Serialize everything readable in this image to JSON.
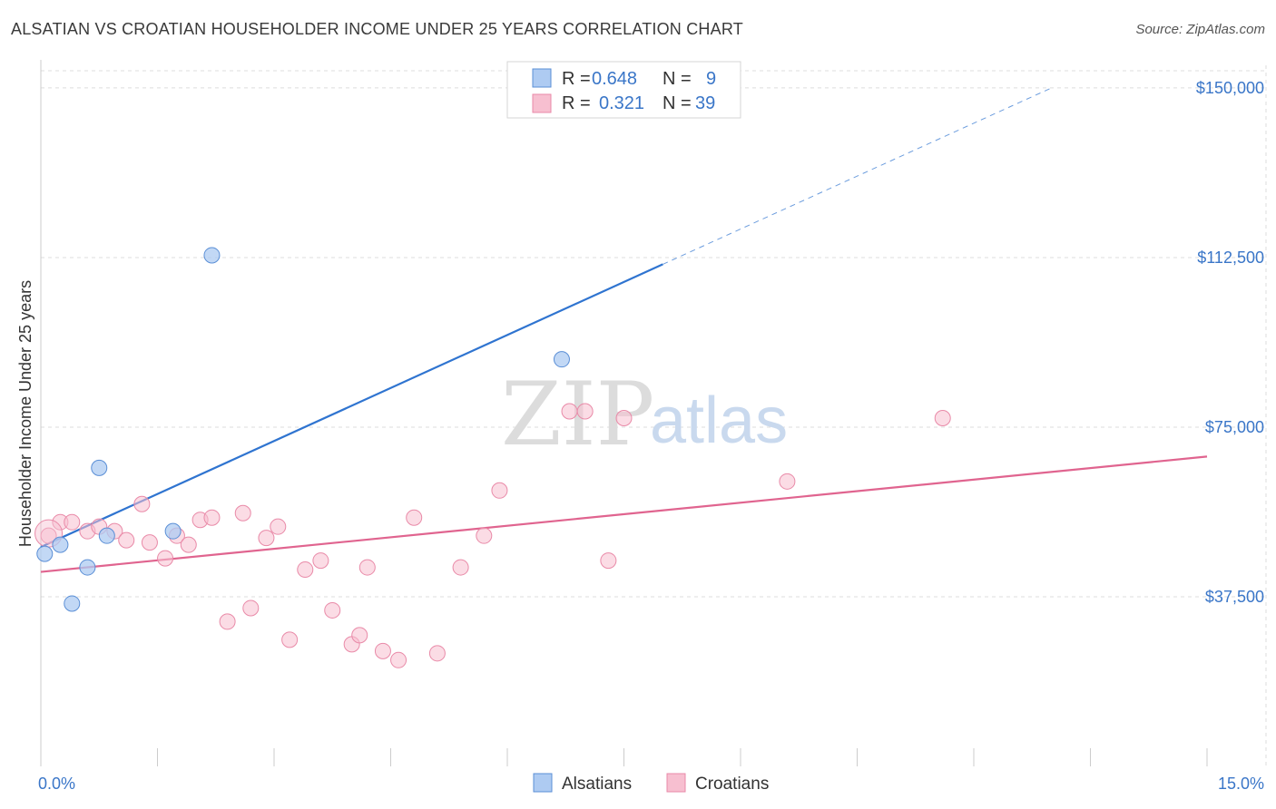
{
  "header": {
    "title": "ALSATIAN VS CROATIAN HOUSEHOLDER INCOME UNDER 25 YEARS CORRELATION CHART",
    "source": "Source: ZipAtlas.com"
  },
  "watermark": {
    "zip": "ZIP",
    "atlas": "atlas"
  },
  "legend": {
    "rows": [
      {
        "r_label": "R =",
        "r_value": "0.648",
        "n_label": "N =",
        "n_value": "9"
      },
      {
        "r_label": "R =",
        "r_value": "0.321",
        "n_label": "N =",
        "n_value": "39"
      }
    ]
  },
  "bottom_legend": {
    "series1": "Alsatians",
    "series2": "Croatians"
  },
  "colors": {
    "alsatian_fill": "#aecbf2",
    "alsatian_stroke": "#5b8fd6",
    "alsatian_line": "#2f74d0",
    "croatian_fill": "#f7bfd0",
    "croatian_stroke": "#e98aa8",
    "croatian_line": "#e0648f",
    "grid": "#dddddd",
    "tick_text": "#3a76c8"
  },
  "chart_data": {
    "type": "scatter",
    "title": "ALSATIAN VS CROATIAN HOUSEHOLDER INCOME UNDER 25 YEARS CORRELATION CHART",
    "xlabel": "",
    "ylabel": "Householder Income Under 25 years",
    "xlim": [
      0,
      15
    ],
    "ylim": [
      0,
      155000
    ],
    "x_tick_labels": [
      "0.0%",
      "15.0%"
    ],
    "y_ticks": [
      37500,
      75000,
      112500,
      150000
    ],
    "y_tick_labels": [
      "$37,500",
      "$75,000",
      "$112,500",
      "$150,000"
    ],
    "grid": true,
    "legend_position": "top-center",
    "series": [
      {
        "name": "Alsatians",
        "R": 0.648,
        "N": 9,
        "points": [
          [
            0.05,
            47000
          ],
          [
            0.25,
            49000
          ],
          [
            0.6,
            44000
          ],
          [
            0.4,
            36000
          ],
          [
            0.75,
            66000
          ],
          [
            0.85,
            51000
          ],
          [
            1.7,
            52000
          ],
          [
            2.2,
            113000
          ],
          [
            6.7,
            90000
          ]
        ],
        "trend": {
          "x0": 0.0,
          "y0": 48500,
          "x1": 8.0,
          "y1": 111000,
          "dashed_to_x": 13.0,
          "dashed_to_y": 150000
        }
      },
      {
        "name": "Croatians",
        "R": 0.321,
        "N": 39,
        "points": [
          [
            0.1,
            51000
          ],
          [
            0.25,
            54000
          ],
          [
            0.4,
            54000
          ],
          [
            0.6,
            52000
          ],
          [
            0.75,
            53000
          ],
          [
            0.95,
            52000
          ],
          [
            1.1,
            50000
          ],
          [
            1.3,
            58000
          ],
          [
            1.4,
            49500
          ],
          [
            1.6,
            46000
          ],
          [
            1.75,
            51000
          ],
          [
            1.9,
            49000
          ],
          [
            2.05,
            54500
          ],
          [
            2.2,
            55000
          ],
          [
            2.4,
            32000
          ],
          [
            2.6,
            56000
          ],
          [
            2.7,
            35000
          ],
          [
            2.9,
            50500
          ],
          [
            3.05,
            53000
          ],
          [
            3.2,
            28000
          ],
          [
            3.4,
            43500
          ],
          [
            3.6,
            45500
          ],
          [
            3.75,
            34500
          ],
          [
            4.0,
            27000
          ],
          [
            4.1,
            29000
          ],
          [
            4.2,
            44000
          ],
          [
            4.4,
            25500
          ],
          [
            4.6,
            23500
          ],
          [
            4.8,
            55000
          ],
          [
            5.1,
            25000
          ],
          [
            5.4,
            44000
          ],
          [
            5.7,
            51000
          ],
          [
            5.9,
            61000
          ],
          [
            6.8,
            78500
          ],
          [
            7.0,
            78500
          ],
          [
            7.3,
            45500
          ],
          [
            7.5,
            77000
          ],
          [
            9.6,
            63000
          ],
          [
            11.6,
            77000
          ]
        ],
        "trend": {
          "x0": 0.0,
          "y0": 43000,
          "x1": 15.0,
          "y1": 68500
        }
      }
    ]
  }
}
